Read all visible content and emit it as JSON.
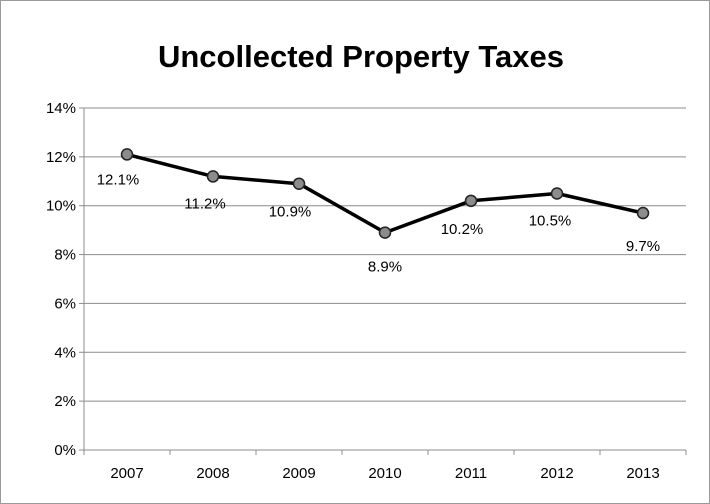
{
  "chart_data": {
    "type": "line",
    "title": "Uncollected Property Taxes",
    "xlabel": "",
    "ylabel": "",
    "categories": [
      "2007",
      "2008",
      "2009",
      "2010",
      "2011",
      "2012",
      "2013"
    ],
    "series": [
      {
        "values": [
          12.1,
          11.2,
          10.9,
          8.9,
          10.2,
          10.5,
          9.7
        ],
        "data_labels": [
          "12.1%",
          "11.2%",
          "10.9%",
          "8.9%",
          "10.2%",
          "10.5%",
          "9.7%"
        ],
        "color": "#000000",
        "marker_color": "#8c8c8c",
        "marker": "circle"
      }
    ],
    "ylim": [
      0,
      14
    ],
    "yticks": [
      0,
      2,
      4,
      6,
      8,
      10,
      12,
      14
    ],
    "ytick_labels": [
      "0%",
      "2%",
      "4%",
      "6%",
      "8%",
      "10%",
      "12%",
      "14%"
    ],
    "grid": true,
    "legend": "none",
    "gridline_color": "#8c8c8c",
    "border_color": "#9a9a9a"
  }
}
